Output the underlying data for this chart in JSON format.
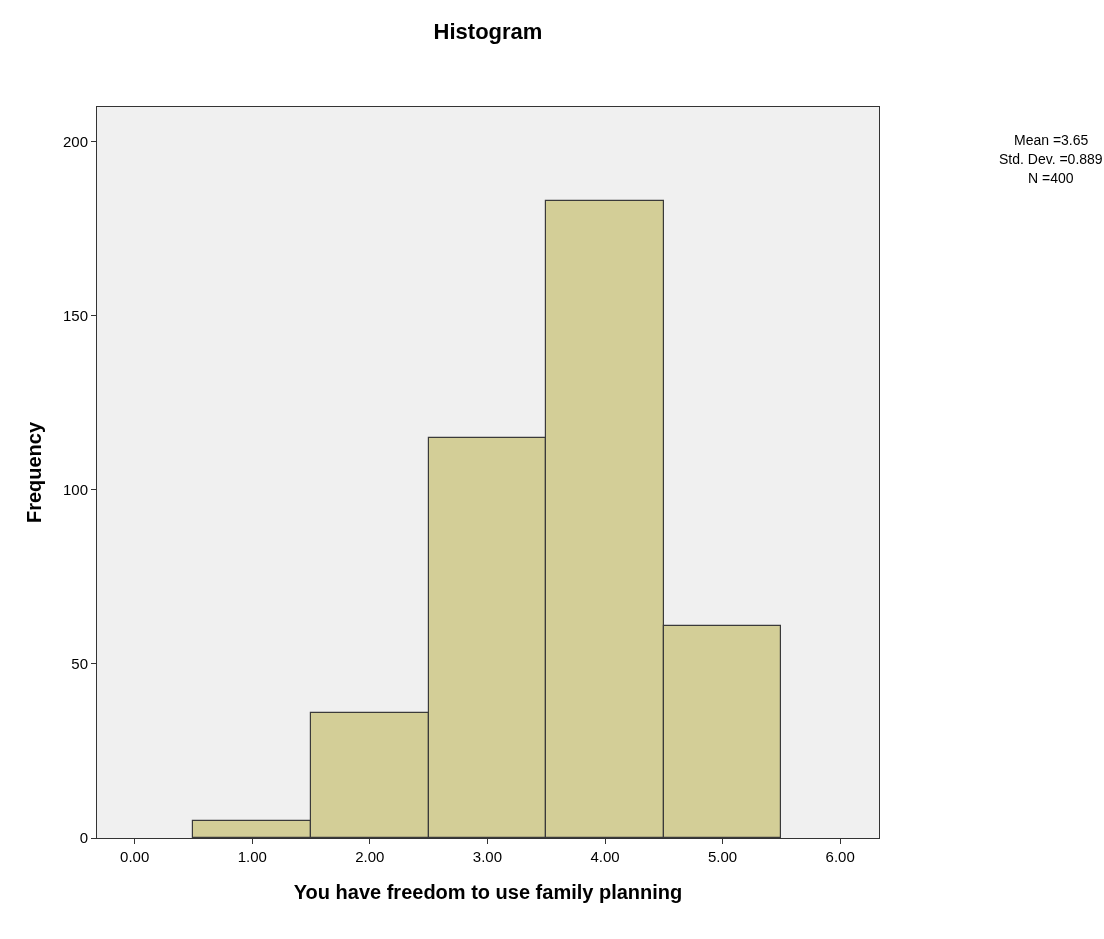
{
  "chart_data": {
    "type": "histogram",
    "title": "Histogram",
    "xlabel": "You have freedom to use family planning",
    "ylabel": "Frequency",
    "bins": [
      0.5,
      1.5,
      2.5,
      3.5,
      4.5,
      5.5
    ],
    "values": [
      5,
      36,
      115,
      183,
      61
    ],
    "color": "#d3ce97",
    "xlim": [
      -0.32,
      6.33
    ],
    "xticks": [
      {
        "value": 0,
        "label": "0.00"
      },
      {
        "value": 1,
        "label": "1.00"
      },
      {
        "value": 2,
        "label": "2.00"
      },
      {
        "value": 3,
        "label": "3.00"
      },
      {
        "value": 4,
        "label": "4.00"
      },
      {
        "value": 5,
        "label": "5.00"
      },
      {
        "value": 6,
        "label": "6.00"
      }
    ],
    "ylim": [
      0,
      210
    ],
    "yticks": [
      0,
      50,
      100,
      150,
      200
    ],
    "grid": false,
    "annotations": [
      "Mean =3.65",
      "Std. Dev. =0.889",
      "N =400"
    ]
  }
}
